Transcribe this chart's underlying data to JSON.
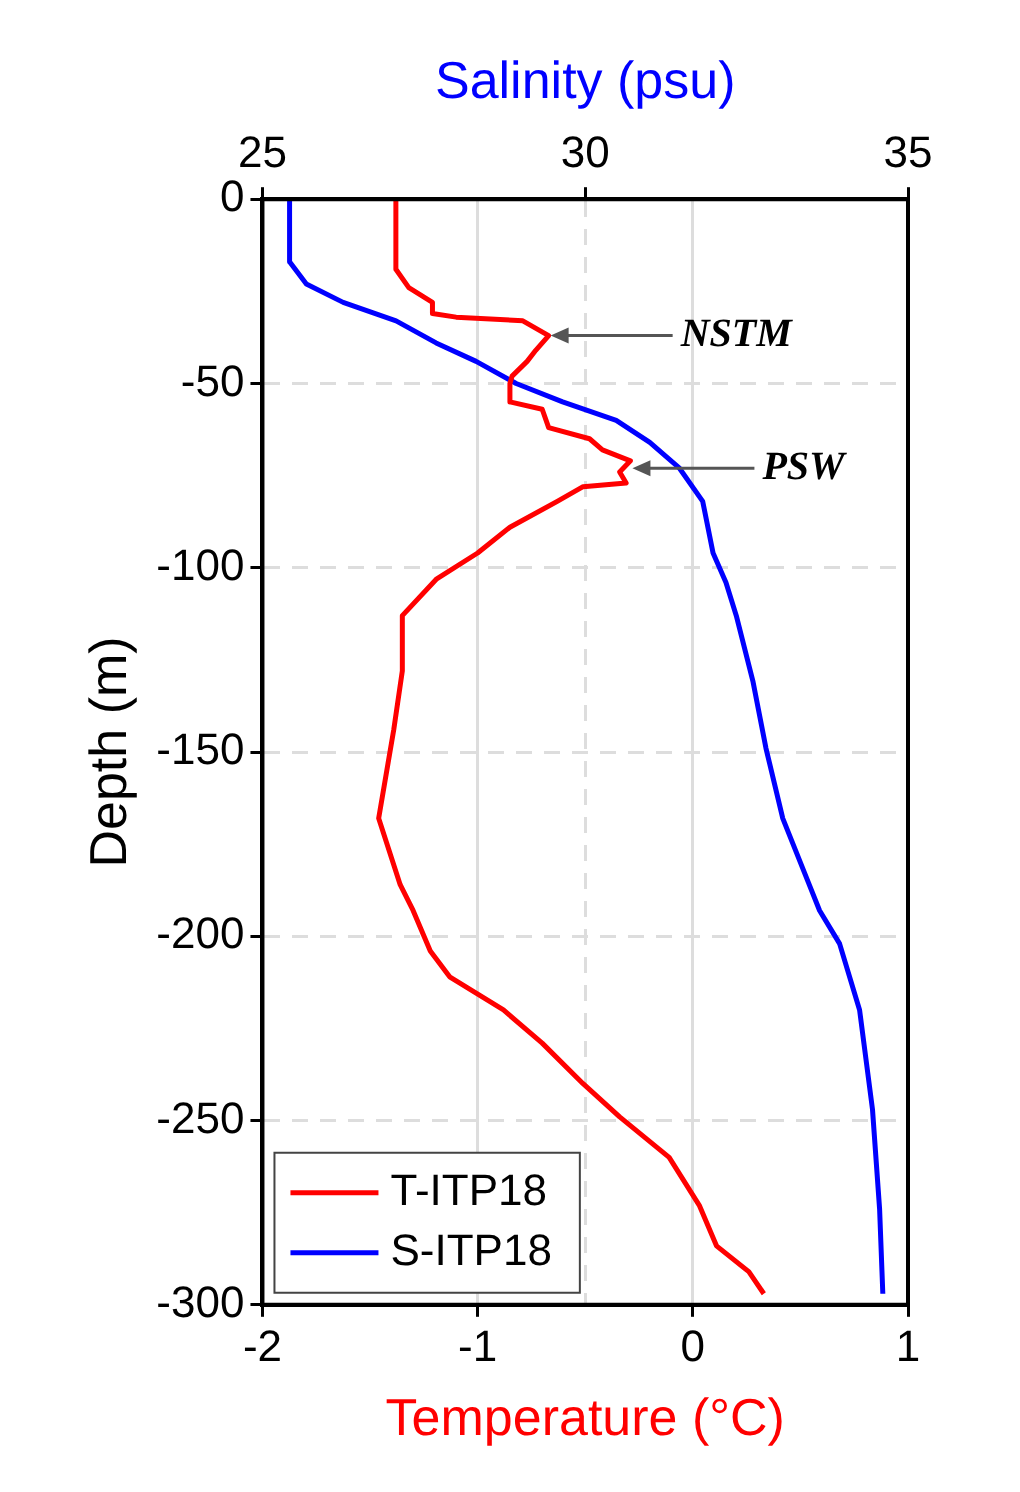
{
  "chart_data": {
    "type": "line",
    "xlabel": "Temperature (°C)",
    "x2label": "Salinity (psu)",
    "ylabel": "Depth (m)",
    "xlim": [
      -2,
      1
    ],
    "xticks": [
      -2,
      -1,
      0,
      1
    ],
    "x2lim": [
      25,
      35
    ],
    "x2ticks": [
      25,
      30,
      35
    ],
    "ylim": [
      -300,
      0
    ],
    "yticks": [
      -300,
      -250,
      -200,
      -150,
      -100,
      -50,
      0
    ],
    "grid": true,
    "legend": "bottom left",
    "line_style": "solid",
    "marker": "none",
    "annotations": [
      {
        "text": "NSTM",
        "x": -0.67,
        "y": -37
      },
      {
        "text": "PSW",
        "x": -0.29,
        "y": -73
      }
    ],
    "series": [
      {
        "name": "T-ITP18",
        "color": "#ff0000",
        "x": [
          -1.38,
          -1.38,
          -1.32,
          -1.21,
          -1.21,
          -1.1,
          -0.79,
          -0.67,
          -0.73,
          -0.77,
          -0.84,
          -0.85,
          -0.85,
          -0.7,
          -0.67,
          -0.48,
          -0.42,
          -0.29,
          -0.34,
          -0.31,
          -0.51,
          -0.63,
          -0.85,
          -1.0,
          -1.19,
          -1.35,
          -1.35,
          -1.39,
          -1.46,
          -1.36,
          -1.3,
          -1.22,
          -1.13,
          -0.88,
          -0.7,
          -0.51,
          -0.34,
          -0.11,
          0.03,
          0.11,
          0.26,
          0.33
        ],
        "values": [
          0,
          -19,
          -24,
          -28,
          -31,
          -32,
          -33,
          -37,
          -41,
          -44,
          -48,
          -50,
          -55,
          -57,
          -62,
          -65,
          -68,
          -71,
          -74,
          -77,
          -78,
          -82,
          -89,
          -96,
          -103,
          -113,
          -128,
          -144,
          -168,
          -186,
          -193,
          -204,
          -211,
          -220,
          -229,
          -240,
          -249,
          -260,
          -273,
          -284,
          -291,
          -297
        ]
      },
      {
        "name": "S-ITP18",
        "color": "#0000ff",
        "axis": "x2",
        "x": [
          25.42,
          25.42,
          25.68,
          26.25,
          27.07,
          27.69,
          28.31,
          28.93,
          29.65,
          30.48,
          31.0,
          31.46,
          31.82,
          31.98,
          32.18,
          32.34,
          32.6,
          32.8,
          33.06,
          33.47,
          33.63,
          33.94,
          34.25,
          34.45,
          34.56,
          34.61
        ],
        "values": [
          0,
          -17,
          -23,
          -28,
          -33,
          -39,
          -44,
          -50,
          -55,
          -60,
          -66,
          -73,
          -82,
          -96,
          -104,
          -113,
          -131,
          -149,
          -168,
          -186,
          -193,
          -202,
          -220,
          -247,
          -274,
          -297
        ]
      }
    ]
  }
}
